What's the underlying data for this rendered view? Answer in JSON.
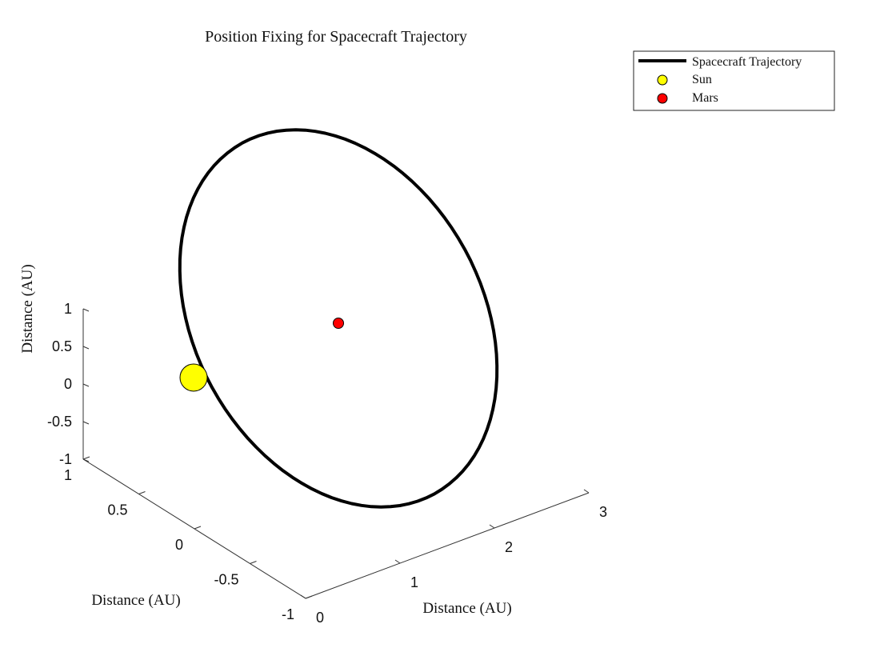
{
  "chart_data": {
    "type": "line3d",
    "title": "Position Fixing for Spacecraft Trajectory",
    "xlabel": "Distance (AU)",
    "ylabel": "Distance (AU)",
    "zlabel": "Distance (AU)",
    "xlim": [
      0,
      3
    ],
    "ylim": [
      -1,
      1
    ],
    "zlim": [
      -1,
      1
    ],
    "xticks": [
      "0",
      "1",
      "2",
      "3"
    ],
    "yticks": [
      "-1",
      "-0.5",
      "0",
      "0.5",
      "1"
    ],
    "zticks": [
      "-1",
      "-0.5",
      "0",
      "0.5",
      "1"
    ],
    "series": [
      {
        "name": "Spacecraft Trajectory",
        "kind": "line",
        "color": "#000000",
        "description_values": {
          "center": [
            1.5,
            0,
            0
          ],
          "semi_axis_x": 1.5,
          "semi_axis_y": 0.87,
          "plane": "z = 0",
          "samples": 100
        }
      },
      {
        "name": "Sun",
        "kind": "marker",
        "color": "#ffff00",
        "x": 0,
        "y": 0,
        "z": 0
      },
      {
        "name": "Mars",
        "kind": "marker",
        "color": "#ff0000",
        "x": 1.52,
        "y": 0,
        "z": 0
      }
    ],
    "legend": {
      "placement": "top-right-outside",
      "entries": [
        "Spacecraft Trajectory",
        "Sun",
        "Mars"
      ]
    },
    "grid": false
  }
}
